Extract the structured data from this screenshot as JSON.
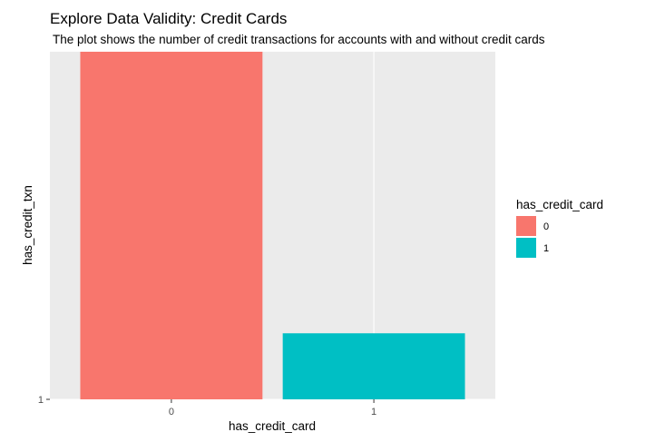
{
  "chart_data": {
    "type": "bar",
    "title": "Explore Data Validity: Credit Cards",
    "subtitle": "The plot shows the number of credit transactions for accounts with and without credit cards",
    "xlabel": "has_credit_card",
    "ylabel": "has_credit_txn",
    "categories": [
      "0",
      "1"
    ],
    "values": [
      1,
      0.19
    ],
    "y_tick_labels": [
      "1"
    ],
    "colors": [
      "#F8766D",
      "#00BFC4"
    ],
    "legend": {
      "title": "has_credit_card",
      "entries": [
        "0",
        "1"
      ],
      "placement": "right"
    },
    "panel_background": "#EBEBEB",
    "grid": true
  }
}
